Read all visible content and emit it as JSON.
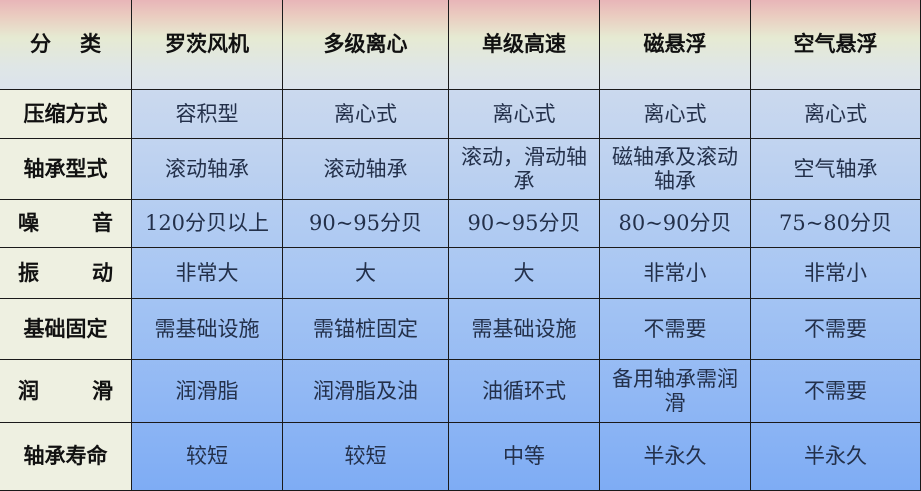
{
  "header": [
    "分 类",
    "罗茨风机",
    "多级离心",
    "单级高速",
    "磁悬浮",
    "空气悬浮"
  ],
  "rows": [
    {
      "label": "压缩方式",
      "cells": [
        "容积型",
        "离心式",
        "离心式",
        "离心式",
        "离心式"
      ]
    },
    {
      "label": "轴承型式",
      "cells": [
        "滚动轴承",
        "滚动轴承",
        "滚动，滑动轴承",
        "磁轴承及滚动轴承",
        "空气轴承"
      ]
    },
    {
      "label": "噪 音",
      "cells": [
        "120分贝以上",
        "90~95分贝",
        "90~95分贝",
        "80~90分贝",
        "75~80分贝"
      ]
    },
    {
      "label": "振 动",
      "cells": [
        "非常大",
        "大",
        "大",
        "非常小",
        "非常小"
      ]
    },
    {
      "label": "基础固定",
      "cells": [
        "需基础设施",
        "需锚桩固定",
        "需基础设施",
        "不需要",
        "不需要"
      ]
    },
    {
      "label": "润 滑",
      "cells": [
        "润滑脂",
        "润滑脂及油",
        "油循环式",
        "备用轴承需润滑",
        "不需要"
      ]
    },
    {
      "label": "轴承寿命",
      "cells": [
        "较短",
        "较短",
        "中等",
        "半永久",
        "半永久"
      ]
    }
  ],
  "colors": {
    "header_top": "#e8b5b8",
    "label_bg": "#eef0e1",
    "data_top": "#cbd9ee",
    "data_bottom": "#7eacf4"
  }
}
